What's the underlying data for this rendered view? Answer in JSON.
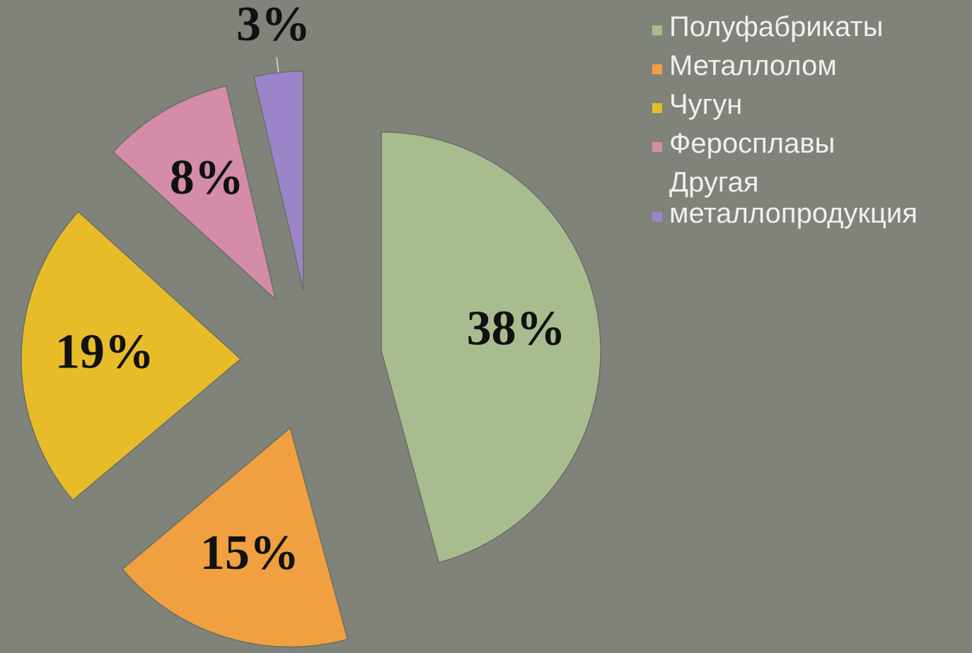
{
  "chart_data": {
    "type": "pie",
    "categories": [
      "Полуфабрикаты",
      "Металлолом",
      "Чугун",
      "Феросплавы",
      "Другая металлопродукция"
    ],
    "values": [
      38,
      15,
      19,
      8,
      3
    ],
    "value_labels": [
      "38%",
      "15%",
      "19%",
      "8%",
      "3%"
    ],
    "colors": [
      "#a9bc8f",
      "#f0a040",
      "#e8bc28",
      "#d48ca8",
      "#9c84c8"
    ],
    "exploded": true,
    "legend": "right"
  }
}
